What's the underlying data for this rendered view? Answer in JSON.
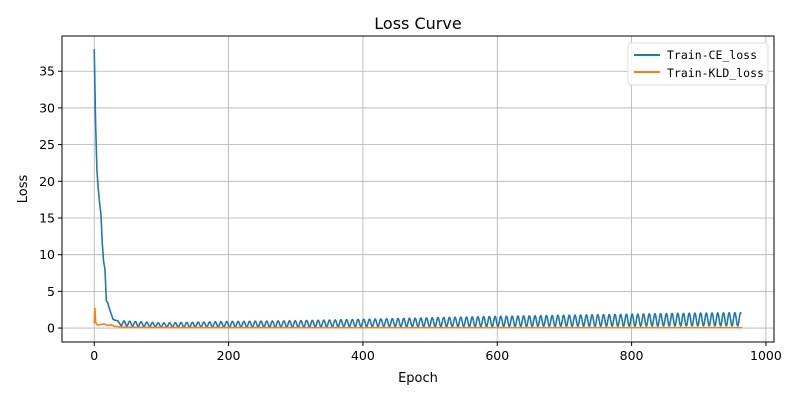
{
  "chart_data": {
    "type": "line",
    "title": "Loss Curve",
    "xlabel": "Epoch",
    "ylabel": "Loss",
    "xlim": [
      -48,
      1012
    ],
    "ylim": [
      -1.9,
      39.8
    ],
    "xticks": [
      0,
      200,
      400,
      600,
      800,
      1000
    ],
    "yticks": [
      0,
      5,
      10,
      15,
      20,
      25,
      30,
      35
    ],
    "grid": true,
    "legend_position": "top-right",
    "series": [
      {
        "name": "Train-CE_loss",
        "color": "#1f77b4",
        "x": [
          0,
          2,
          4,
          6,
          8,
          10,
          12,
          14,
          16,
          18,
          20,
          22,
          25,
          28,
          30,
          35,
          40,
          50,
          100,
          200,
          300,
          400,
          500,
          600,
          700,
          800,
          900,
          960,
          963
        ],
        "values": [
          38.0,
          28.0,
          21.5,
          19.0,
          17.0,
          15.5,
          11.5,
          9.0,
          8.0,
          3.7,
          3.5,
          2.8,
          2.0,
          1.2,
          1.1,
          1.0,
          0.6,
          0.45,
          0.4,
          0.5,
          0.6,
          0.7,
          0.8,
          0.9,
          1.0,
          1.1,
          1.2,
          1.25,
          1.3
        ],
        "oscillation_peaks": [
          [
            40,
            1.0
          ],
          [
            100,
            0.7
          ],
          [
            200,
            0.9
          ],
          [
            300,
            1.0
          ],
          [
            400,
            1.2
          ],
          [
            500,
            1.4
          ],
          [
            600,
            1.6
          ],
          [
            700,
            1.75
          ],
          [
            800,
            1.9
          ],
          [
            900,
            2.05
          ],
          [
            963,
            2.1
          ]
        ],
        "oscillation_troughs": [
          [
            40,
            0.3
          ],
          [
            100,
            0.15
          ],
          [
            200,
            0.15
          ],
          [
            300,
            0.15
          ],
          [
            400,
            0.2
          ],
          [
            500,
            0.2
          ],
          [
            600,
            0.2
          ],
          [
            700,
            0.25
          ],
          [
            800,
            0.25
          ],
          [
            900,
            0.3
          ],
          [
            963,
            0.3
          ]
        ],
        "oscillation_period": 8.5
      },
      {
        "name": "Train-KLD_loss",
        "color": "#ff7f0e",
        "x": [
          0,
          1,
          2,
          4,
          6,
          10,
          15,
          20,
          25,
          30,
          40,
          60,
          100,
          200,
          400,
          600,
          800,
          965
        ],
        "values": [
          0.6,
          2.7,
          0.8,
          0.5,
          0.4,
          0.5,
          0.55,
          0.35,
          0.45,
          0.25,
          0.15,
          0.1,
          0.08,
          0.07,
          0.06,
          0.06,
          0.06,
          0.06
        ]
      }
    ]
  }
}
